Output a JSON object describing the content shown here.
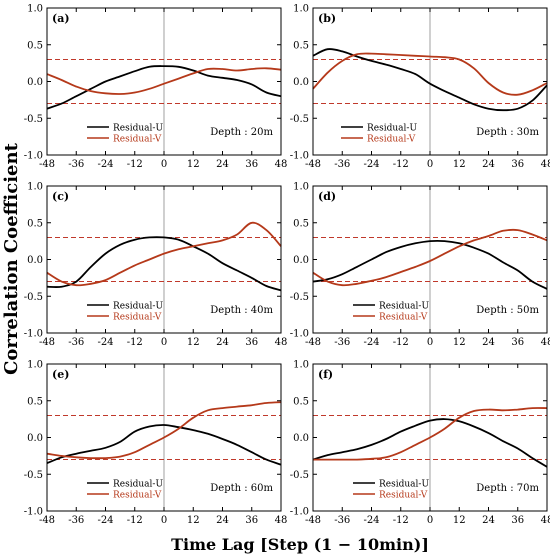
{
  "figure": {
    "ylabel": "Correlation Coefficient",
    "xlabel": "Time Lag [Step (1 − 10min)]"
  },
  "colors": {
    "residual_u": "#000000",
    "residual_v": "#b5391a",
    "threshold_line": "#c0392b",
    "zero_line": "#888888"
  },
  "chart_data": [
    {
      "type": "line",
      "panel": "(a)",
      "depth_label": "Depth : 20m",
      "x": [
        -48,
        -42,
        -36,
        -30,
        -24,
        -18,
        -12,
        -6,
        0,
        6,
        12,
        18,
        24,
        30,
        36,
        42,
        48
      ],
      "xticks": [
        -48,
        -36,
        -24,
        -12,
        0,
        12,
        24,
        36,
        48
      ],
      "yticks": [
        -1.0,
        -0.5,
        0.0,
        0.5,
        1.0
      ],
      "xlim": [
        -48,
        48
      ],
      "ylim": [
        -1.0,
        1.0
      ],
      "thresholds": [
        0.3,
        -0.3
      ],
      "series": [
        {
          "name": "Residual-U",
          "values": [
            -0.37,
            -0.3,
            -0.2,
            -0.1,
            0.0,
            0.07,
            0.14,
            0.2,
            0.21,
            0.2,
            0.15,
            0.08,
            0.05,
            0.02,
            -0.04,
            -0.15,
            -0.2
          ]
        },
        {
          "name": "Residual-V",
          "values": [
            0.1,
            0.02,
            -0.07,
            -0.13,
            -0.16,
            -0.17,
            -0.15,
            -0.1,
            -0.03,
            0.04,
            0.11,
            0.17,
            0.17,
            0.15,
            0.17,
            0.18,
            0.16
          ]
        }
      ],
      "legend": "bottom-left"
    },
    {
      "type": "line",
      "panel": "(b)",
      "depth_label": "Depth : 30m",
      "x": [
        -48,
        -42,
        -36,
        -30,
        -24,
        -18,
        -12,
        -6,
        0,
        6,
        12,
        18,
        24,
        30,
        36,
        42,
        48
      ],
      "xticks": [
        -48,
        -36,
        -24,
        -12,
        0,
        12,
        24,
        36,
        48
      ],
      "yticks": [
        -1.0,
        -0.5,
        0.0,
        0.5,
        1.0
      ],
      "xlim": [
        -48,
        48
      ],
      "ylim": [
        -1.0,
        1.0
      ],
      "thresholds": [
        0.3,
        -0.3
      ],
      "series": [
        {
          "name": "Residual-U",
          "values": [
            0.35,
            0.44,
            0.41,
            0.34,
            0.28,
            0.23,
            0.17,
            0.1,
            -0.03,
            -0.13,
            -0.22,
            -0.31,
            -0.37,
            -0.39,
            -0.37,
            -0.26,
            -0.05
          ]
        },
        {
          "name": "Residual-V",
          "values": [
            -0.1,
            0.12,
            0.28,
            0.37,
            0.38,
            0.37,
            0.36,
            0.35,
            0.34,
            0.33,
            0.3,
            0.18,
            -0.02,
            -0.15,
            -0.18,
            -0.12,
            -0.02
          ]
        }
      ],
      "legend": "bottom-right"
    },
    {
      "type": "line",
      "panel": "(c)",
      "depth_label": "Depth : 40m",
      "x": [
        -48,
        -42,
        -36,
        -30,
        -24,
        -18,
        -12,
        -6,
        0,
        6,
        12,
        18,
        24,
        30,
        36,
        42,
        48
      ],
      "xticks": [
        -48,
        -36,
        -24,
        -12,
        0,
        12,
        24,
        36,
        48
      ],
      "yticks": [
        -1.0,
        -0.5,
        0.0,
        0.5,
        1.0
      ],
      "xlim": [
        -48,
        48
      ],
      "ylim": [
        -1.0,
        1.0
      ],
      "thresholds": [
        0.3,
        -0.3
      ],
      "series": [
        {
          "name": "Residual-U",
          "values": [
            -0.37,
            -0.37,
            -0.3,
            -0.1,
            0.08,
            0.2,
            0.27,
            0.3,
            0.3,
            0.27,
            0.18,
            0.08,
            -0.05,
            -0.15,
            -0.25,
            -0.36,
            -0.42
          ]
        },
        {
          "name": "Residual-V",
          "values": [
            -0.18,
            -0.3,
            -0.35,
            -0.33,
            -0.28,
            -0.18,
            -0.08,
            0.0,
            0.08,
            0.14,
            0.18,
            0.22,
            0.26,
            0.34,
            0.5,
            0.4,
            0.18
          ]
        }
      ],
      "legend": "bottom-left"
    },
    {
      "type": "line",
      "panel": "(d)",
      "depth_label": "Depth : 50m",
      "x": [
        -48,
        -42,
        -36,
        -30,
        -24,
        -18,
        -12,
        -6,
        0,
        6,
        12,
        18,
        24,
        30,
        36,
        42,
        48
      ],
      "xticks": [
        -48,
        -36,
        -24,
        -12,
        0,
        12,
        24,
        36,
        48
      ],
      "yticks": [
        -1.0,
        -0.5,
        0.0,
        0.5,
        1.0
      ],
      "xlim": [
        -48,
        48
      ],
      "ylim": [
        -1.0,
        1.0
      ],
      "thresholds": [
        0.3,
        -0.3
      ],
      "series": [
        {
          "name": "Residual-U",
          "values": [
            -0.3,
            -0.27,
            -0.2,
            -0.1,
            0.0,
            0.1,
            0.17,
            0.22,
            0.25,
            0.25,
            0.22,
            0.16,
            0.08,
            -0.04,
            -0.15,
            -0.3,
            -0.4
          ]
        },
        {
          "name": "Residual-V",
          "values": [
            -0.18,
            -0.3,
            -0.35,
            -0.33,
            -0.29,
            -0.24,
            -0.17,
            -0.1,
            -0.02,
            0.08,
            0.18,
            0.26,
            0.32,
            0.39,
            0.4,
            0.34,
            0.26
          ]
        }
      ],
      "legend": "bottom-left"
    },
    {
      "type": "line",
      "panel": "(e)",
      "depth_label": "Depth : 60m",
      "x": [
        -48,
        -42,
        -36,
        -30,
        -24,
        -18,
        -12,
        -6,
        0,
        6,
        12,
        18,
        24,
        30,
        36,
        42,
        48
      ],
      "xticks": [
        -48,
        -36,
        -24,
        -12,
        0,
        12,
        24,
        36,
        48
      ],
      "yticks": [
        -1.0,
        -0.5,
        0.0,
        0.5,
        1.0
      ],
      "xlim": [
        -48,
        48
      ],
      "ylim": [
        -1.0,
        1.0
      ],
      "thresholds": [
        0.3,
        -0.3
      ],
      "series": [
        {
          "name": "Residual-U",
          "values": [
            -0.35,
            -0.27,
            -0.22,
            -0.18,
            -0.14,
            -0.06,
            0.08,
            0.15,
            0.17,
            0.14,
            0.1,
            0.05,
            -0.02,
            -0.1,
            -0.2,
            -0.3,
            -0.37
          ]
        },
        {
          "name": "Residual-V",
          "values": [
            -0.22,
            -0.25,
            -0.27,
            -0.28,
            -0.28,
            -0.26,
            -0.2,
            -0.1,
            0.0,
            0.12,
            0.27,
            0.37,
            0.4,
            0.42,
            0.44,
            0.47,
            0.48
          ]
        }
      ],
      "legend": "bottom-left"
    },
    {
      "type": "line",
      "panel": "(f)",
      "depth_label": "Depth : 70m",
      "x": [
        -48,
        -42,
        -36,
        -30,
        -24,
        -18,
        -12,
        -6,
        0,
        6,
        12,
        18,
        24,
        30,
        36,
        42,
        48
      ],
      "xticks": [
        -48,
        -36,
        -24,
        -12,
        0,
        12,
        24,
        36,
        48
      ],
      "yticks": [
        -1.0,
        -0.5,
        0.0,
        0.5,
        1.0
      ],
      "xlim": [
        -48,
        48
      ],
      "ylim": [
        -1.0,
        1.0
      ],
      "thresholds": [
        0.3,
        -0.3
      ],
      "series": [
        {
          "name": "Residual-U",
          "values": [
            -0.3,
            -0.24,
            -0.2,
            -0.16,
            -0.1,
            -0.02,
            0.08,
            0.16,
            0.23,
            0.25,
            0.22,
            0.15,
            0.06,
            -0.05,
            -0.15,
            -0.28,
            -0.4
          ]
        },
        {
          "name": "Residual-V",
          "values": [
            -0.3,
            -0.3,
            -0.3,
            -0.3,
            -0.29,
            -0.27,
            -0.2,
            -0.1,
            0.0,
            0.12,
            0.27,
            0.36,
            0.38,
            0.37,
            0.38,
            0.4,
            0.4
          ]
        }
      ],
      "legend": "bottom-left"
    }
  ]
}
